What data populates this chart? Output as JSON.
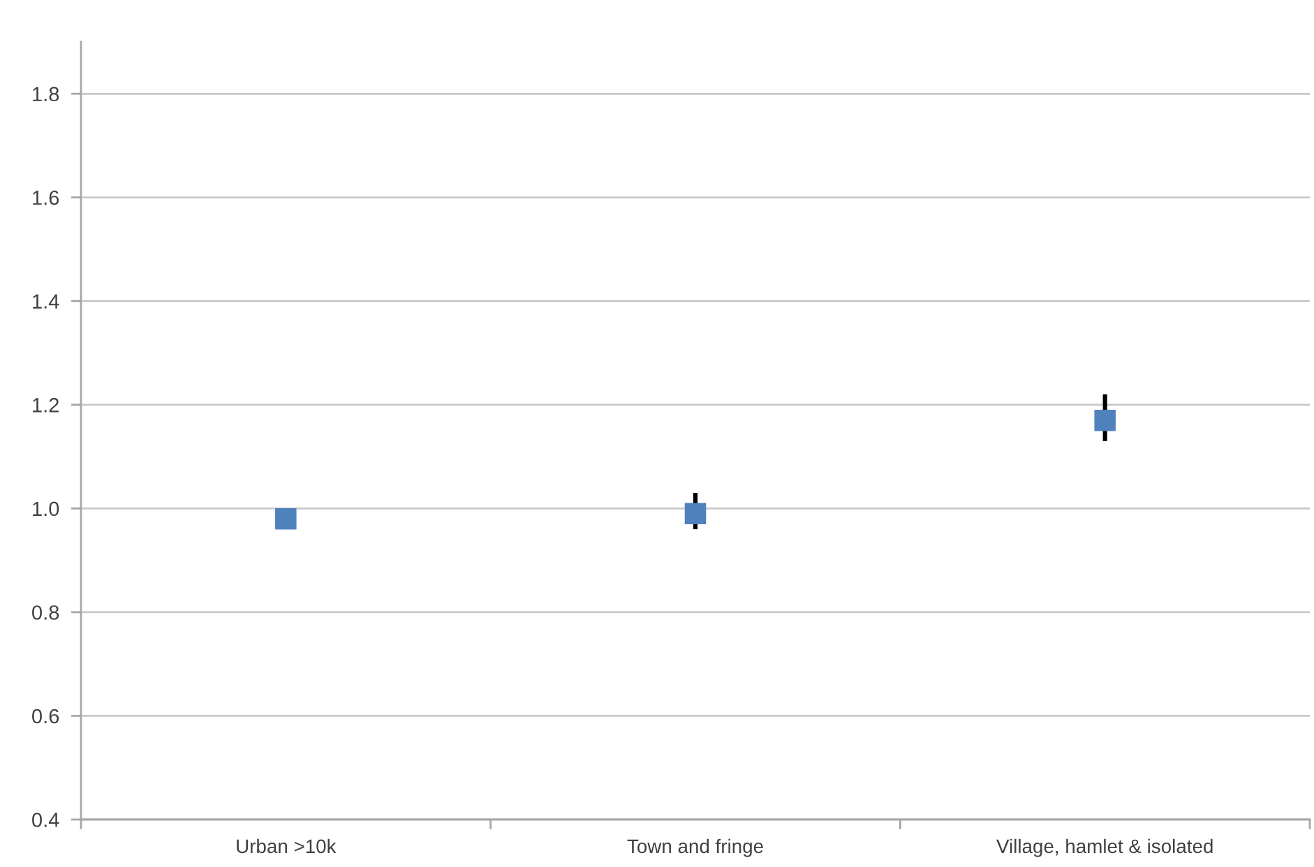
{
  "chart_data": {
    "type": "scatter",
    "categories": [
      "Urban >10k",
      "Town and fringe",
      "Village, hamlet & isolated"
    ],
    "series": [
      {
        "color": "#4f81bd",
        "values": [
          0.98,
          0.99,
          1.17
        ],
        "errors": [
          null,
          [
            0.96,
            1.03
          ],
          [
            1.13,
            1.22
          ]
        ]
      }
    ],
    "ylim": [
      0.4,
      1.9
    ],
    "yticks": [
      0.4,
      0.6,
      0.8,
      {
        "value": 1,
        "label": "1.0"
      },
      1.2,
      1.4,
      1.6,
      1.8
    ],
    "grid": "y",
    "marker": "square"
  }
}
